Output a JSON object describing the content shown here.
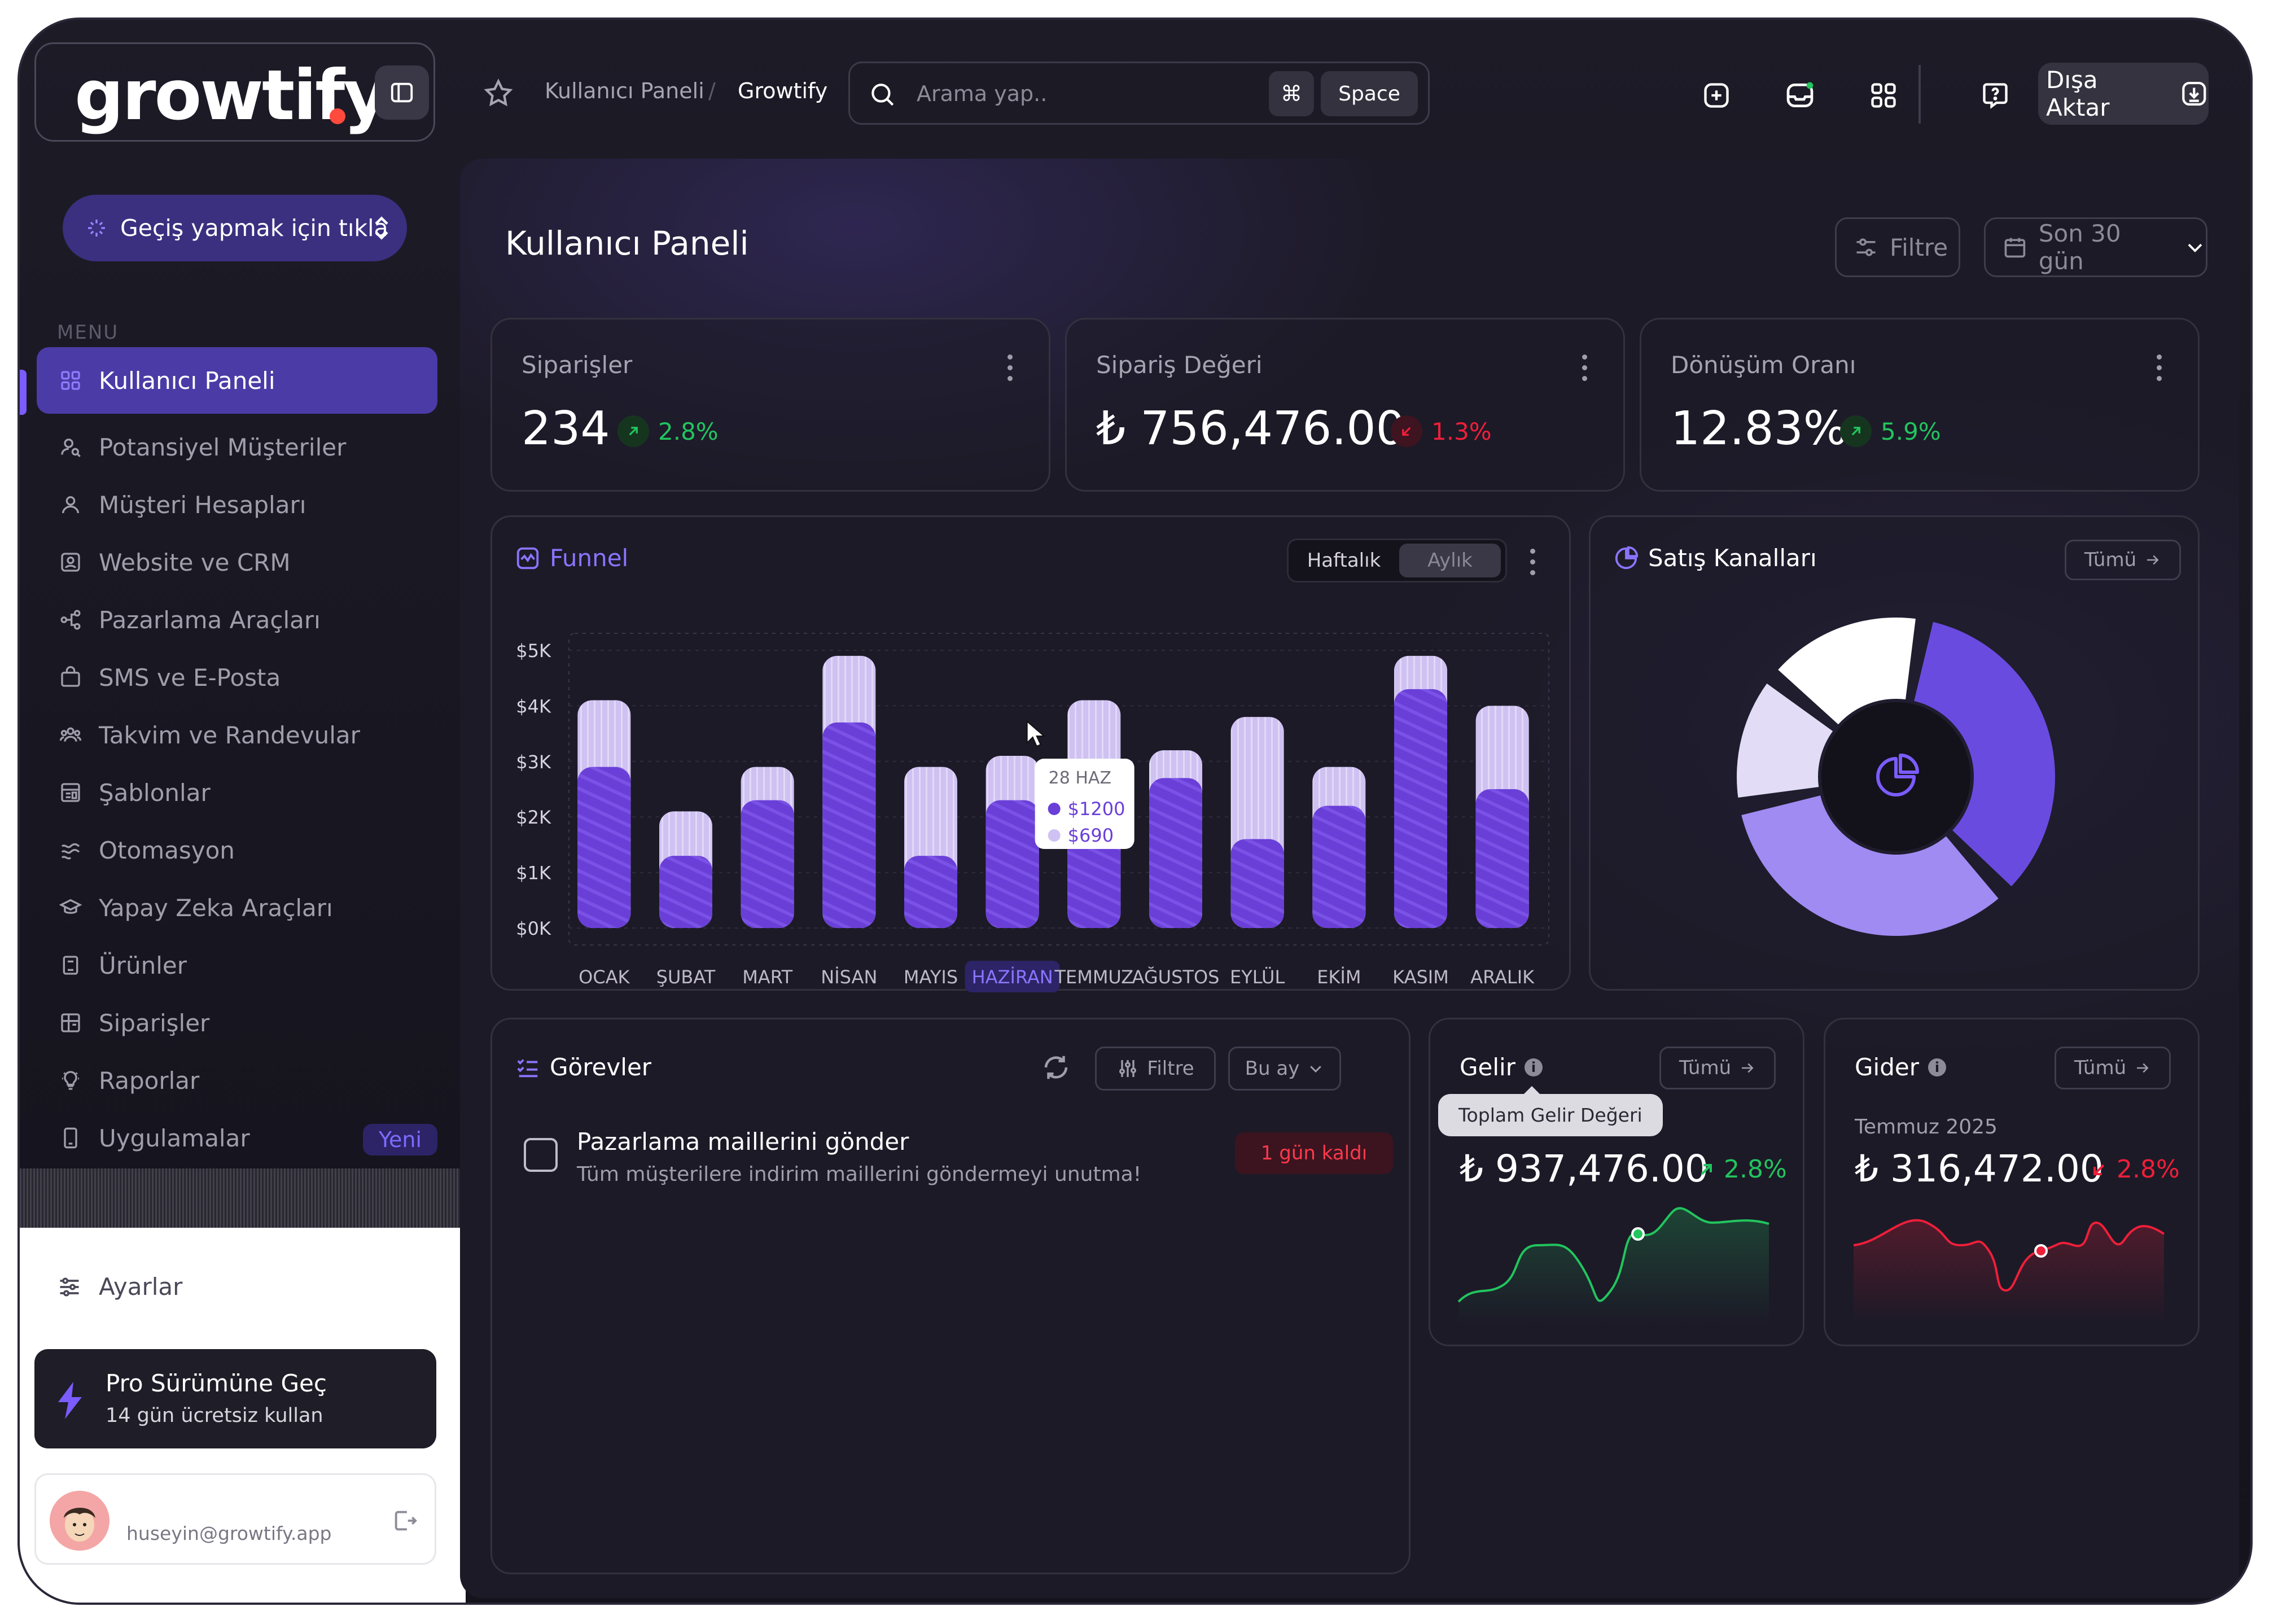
{
  "brand": {
    "name": "growtify"
  },
  "sidebar": {
    "switch_label": "Geçiş yapmak için tıkla",
    "menu_heading": "MENU",
    "items": [
      {
        "label": "Kullanıcı Paneli",
        "icon": "grid-icon",
        "active": true
      },
      {
        "label": "Potansiyel Müşteriler",
        "icon": "user-search-icon"
      },
      {
        "label": "Müşteri Hesapları",
        "icon": "user-icon"
      },
      {
        "label": "Website ve CRM",
        "icon": "profile-card-icon"
      },
      {
        "label": "Pazarlama Araçları",
        "icon": "share-nodes-icon"
      },
      {
        "label": "SMS ve E-Posta",
        "icon": "bag-icon"
      },
      {
        "label": "Takvim ve Randevular",
        "icon": "users-icon"
      },
      {
        "label": "Şablonlar",
        "icon": "template-icon"
      },
      {
        "label": "Otomasyon",
        "icon": "automation-icon"
      },
      {
        "label": "Yapay Zeka Araçları",
        "icon": "graduation-icon"
      },
      {
        "label": "Ürünler",
        "icon": "book-icon"
      },
      {
        "label": "Siparişler",
        "icon": "orders-icon"
      },
      {
        "label": "Raporlar",
        "icon": "bulb-icon"
      },
      {
        "label": "Uygulamalar",
        "icon": "phone-icon",
        "badge": "Yeni"
      }
    ],
    "settings_label": "Ayarlar",
    "pro": {
      "title": "Pro Sürümüne Geç",
      "subtitle": "14 gün ücretsiz kullan"
    },
    "user": {
      "email": "huseyin@growtify.app"
    }
  },
  "topbar": {
    "breadcrumb": [
      "Kullanıcı Paneli",
      "Growtify"
    ],
    "search_placeholder": "Arama yap..",
    "shortcut_symbol": "⌘",
    "shortcut_key": "Space",
    "export_label": "Dışa Aktar"
  },
  "page": {
    "title": "Kullanıcı Paneli",
    "filter_label": "Filtre",
    "range_label": "Son 30 gün"
  },
  "stats": [
    {
      "label": "Siparişler",
      "value": "234",
      "delta": "2.8%",
      "trend": "up"
    },
    {
      "label": "Sipariş Değeri",
      "value": "₺ 756,476.00",
      "delta": "1.3%",
      "trend": "down"
    },
    {
      "label": "Dönüşüm Oranı",
      "value": "12.83%",
      "delta": "5.9%",
      "trend": "up"
    }
  ],
  "funnel": {
    "title": "Funnel",
    "toggle": [
      "Haftalık",
      "Aylık"
    ],
    "tooltip": {
      "date": "28 HAZ",
      "primary": "$1200",
      "secondary": "$690"
    }
  },
  "chart_data": {
    "type": "bar",
    "categories": [
      "OCAK",
      "ŞUBAT",
      "MART",
      "NİSAN",
      "MAYIS",
      "HAZİRAN",
      "TEMMUZ",
      "AĞUSTOS",
      "EYLÜL",
      "EKİM",
      "KASIM",
      "ARALIK"
    ],
    "highlight_category": "HAZİRAN",
    "y_tick_labels": [
      "$0K",
      "$1K",
      "$2K",
      "$3K",
      "$4K",
      "$5K"
    ],
    "ylim": [
      0,
      5000
    ],
    "series": [
      {
        "values": [
          2900,
          1300,
          2300,
          3700,
          1300,
          2300,
          2300,
          2700,
          1600,
          2200,
          4300,
          2500
        ]
      },
      {
        "values": [
          4100,
          2100,
          2900,
          4900,
          2900,
          3100,
          4100,
          3200,
          3800,
          2900,
          4900,
          4000
        ]
      }
    ],
    "colors": {
      "primary": "#6a3fd8",
      "secondary": "#cfc2f2"
    },
    "grid": true
  },
  "channels": {
    "title": "Satış Kanalları",
    "all_label": "Tümü",
    "segments": [
      {
        "color": "#6a4be0",
        "value": 33
      },
      {
        "color": "#a08bf3",
        "value": 32
      },
      {
        "color": "#e2dcf6",
        "value": 13
      },
      {
        "color": "#ffffff",
        "value": 16
      }
    ]
  },
  "tasks": {
    "title": "Görevler",
    "filter_label": "Filtre",
    "period_label": "Bu ay",
    "items": [
      {
        "title": "Pazarlama maillerini gönder",
        "desc": "Tüm müşterilere indirim maillerini göndermeyi unutma!",
        "badge": "1 gün kaldı"
      }
    ]
  },
  "income": {
    "title": "Gelir",
    "all_label": "Tümü",
    "tooltip": "Toplam Gelir Değeri",
    "value": "₺ 937,476.00",
    "delta": "2.8%",
    "trend": "up",
    "color": "#22c55e"
  },
  "expense": {
    "title": "Gider",
    "all_label": "Tümü",
    "period": "Temmuz 2025",
    "value": "₺ 316,472.00",
    "delta": "2.8%",
    "trend": "down",
    "color": "#ef1f3a"
  }
}
